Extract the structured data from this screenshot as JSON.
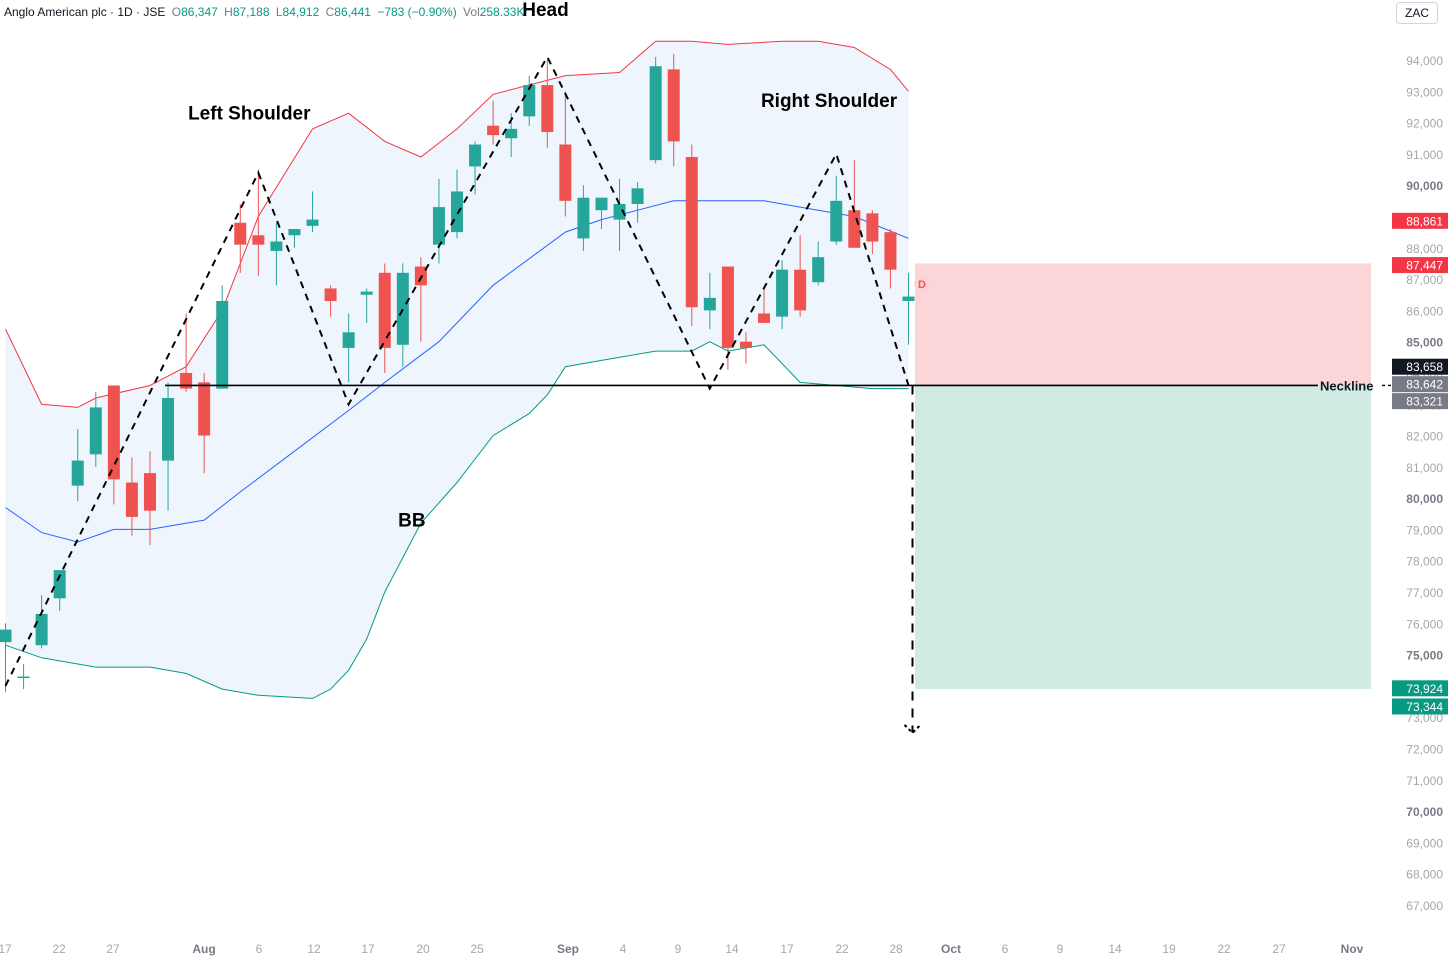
{
  "legend": {
    "symbol": "Anglo American plc · 1D · JSE",
    "open_label": "O",
    "open": "86,347",
    "high_label": "H",
    "high": "87,188",
    "low_label": "L",
    "low": "84,912",
    "close_label": "C",
    "close": "86,441",
    "change": "−783 (−0.90%)",
    "vol_label": "Vol",
    "vol": "258.33K"
  },
  "currency_button": "ZAC",
  "colors": {
    "up": "#26a69a",
    "down": "#ef5350",
    "bb_upper": "#f23645",
    "bb_lower": "#089981",
    "bb_basis": "#2962ff",
    "bb_fill": "#eef5fc",
    "stop_zone": "#fbd5d8",
    "target_zone": "#d0ebe4"
  },
  "chart_data": {
    "type": "candlestick",
    "x_tick_labels": [
      "17",
      "22",
      "27",
      "Aug",
      "6",
      "12",
      "17",
      "20",
      "25",
      "Sep",
      "4",
      "9",
      "14",
      "17",
      "22",
      "28",
      "Oct",
      "6",
      "9",
      "14",
      "19",
      "22",
      "27",
      "Nov"
    ],
    "y_ticks": [
      67000,
      68000,
      69000,
      70000,
      71000,
      72000,
      73000,
      74000,
      75000,
      76000,
      77000,
      78000,
      79000,
      80000,
      81000,
      82000,
      83000,
      84000,
      85000,
      86000,
      87000,
      88000,
      89000,
      90000,
      91000,
      92000,
      93000,
      94000
    ],
    "y_tick_labels": [
      "67,000",
      "68,000",
      "69,000",
      "70,000",
      "71,000",
      "72,000",
      "73,000",
      "74,000",
      "75,000",
      "76,000",
      "77,000",
      "78,000",
      "79,000",
      "80,000",
      "81,000",
      "82,000",
      "83,000",
      "84,000",
      "85,000",
      "86,000",
      "87,000",
      "88,000",
      "89,000",
      "90,000",
      "91,000",
      "92,000",
      "93,000",
      "94,000"
    ],
    "ylim": [
      66700,
      95400
    ],
    "candles": [
      {
        "o": 75400,
        "h": 76000,
        "l": 73800,
        "c": 75800
      },
      {
        "o": 74300,
        "h": 74700,
        "l": 73900,
        "c": 74300
      },
      {
        "o": 75300,
        "h": 76900,
        "l": 75200,
        "c": 76300
      },
      {
        "o": 76800,
        "h": 77700,
        "l": 76400,
        "c": 77700
      },
      {
        "o": 80400,
        "h": 82200,
        "l": 79900,
        "c": 81200
      },
      {
        "o": 81400,
        "h": 83400,
        "l": 81000,
        "c": 82900
      },
      {
        "o": 83600,
        "h": 83600,
        "l": 79800,
        "c": 80600
      },
      {
        "o": 80500,
        "h": 81300,
        "l": 78800,
        "c": 79400
      },
      {
        "o": 80800,
        "h": 81500,
        "l": 78500,
        "c": 79600
      },
      {
        "o": 81200,
        "h": 83700,
        "l": 79600,
        "c": 83200
      },
      {
        "o": 84000,
        "h": 85900,
        "l": 83400,
        "c": 83500
      },
      {
        "o": 83700,
        "h": 84000,
        "l": 80800,
        "c": 82000
      },
      {
        "o": 83500,
        "h": 86800,
        "l": 83500,
        "c": 86300
      },
      {
        "o": 88800,
        "h": 89400,
        "l": 87200,
        "c": 88100
      },
      {
        "o": 88400,
        "h": 90500,
        "l": 87100,
        "c": 88100
      },
      {
        "o": 87900,
        "h": 88800,
        "l": 86800,
        "c": 88200
      },
      {
        "o": 88400,
        "h": 88600,
        "l": 88000,
        "c": 88600
      },
      {
        "o": 88700,
        "h": 89800,
        "l": 88500,
        "c": 88900
      },
      {
        "o": 86700,
        "h": 86800,
        "l": 85800,
        "c": 86300
      },
      {
        "o": 84800,
        "h": 85900,
        "l": 83700,
        "c": 85300
      },
      {
        "o": 86500,
        "h": 86700,
        "l": 85600,
        "c": 86600
      },
      {
        "o": 87200,
        "h": 87500,
        "l": 84000,
        "c": 84800
      },
      {
        "o": 84900,
        "h": 87500,
        "l": 84200,
        "c": 87200
      },
      {
        "o": 87400,
        "h": 87700,
        "l": 85000,
        "c": 86800
      },
      {
        "o": 88100,
        "h": 90200,
        "l": 87500,
        "c": 89300
      },
      {
        "o": 88500,
        "h": 90500,
        "l": 88300,
        "c": 89800
      },
      {
        "o": 90600,
        "h": 91400,
        "l": 89700,
        "c": 91300
      },
      {
        "o": 91900,
        "h": 92700,
        "l": 91300,
        "c": 91600
      },
      {
        "o": 91500,
        "h": 92300,
        "l": 90900,
        "c": 91800
      },
      {
        "o": 92200,
        "h": 93500,
        "l": 91900,
        "c": 93200
      },
      {
        "o": 93200,
        "h": 94000,
        "l": 91200,
        "c": 91700
      },
      {
        "o": 91300,
        "h": 93000,
        "l": 89000,
        "c": 89500
      },
      {
        "o": 88300,
        "h": 90000,
        "l": 87900,
        "c": 89600
      },
      {
        "o": 89200,
        "h": 89600,
        "l": 88600,
        "c": 89600
      },
      {
        "o": 88900,
        "h": 90200,
        "l": 87900,
        "c": 89400
      },
      {
        "o": 89400,
        "h": 90100,
        "l": 88800,
        "c": 89900
      },
      {
        "o": 90800,
        "h": 94100,
        "l": 90700,
        "c": 93800
      },
      {
        "o": 93700,
        "h": 94200,
        "l": 90600,
        "c": 91400
      },
      {
        "o": 90900,
        "h": 91300,
        "l": 85500,
        "c": 86100
      },
      {
        "o": 86000,
        "h": 87200,
        "l": 85400,
        "c": 86400
      },
      {
        "o": 87400,
        "h": 87400,
        "l": 84100,
        "c": 84800
      },
      {
        "o": 85000,
        "h": 85300,
        "l": 84300,
        "c": 84800
      },
      {
        "o": 85900,
        "h": 86700,
        "l": 85600,
        "c": 85600
      },
      {
        "o": 85800,
        "h": 87600,
        "l": 85400,
        "c": 87300
      },
      {
        "o": 87300,
        "h": 88400,
        "l": 85800,
        "c": 86000
      },
      {
        "o": 86900,
        "h": 88200,
        "l": 86800,
        "c": 87700
      },
      {
        "o": 88200,
        "h": 90300,
        "l": 88100,
        "c": 89500
      },
      {
        "o": 89200,
        "h": 90800,
        "l": 88200,
        "c": 88000
      },
      {
        "o": 89100,
        "h": 89200,
        "l": 87800,
        "c": 88200
      },
      {
        "o": 88500,
        "h": 88600,
        "l": 86700,
        "c": 87300
      },
      {
        "o": 86300,
        "h": 87200,
        "l": 84900,
        "c": 86441
      }
    ],
    "bollinger": {
      "upper": [
        {
          "i": 0,
          "v": 85400
        },
        {
          "i": 2,
          "v": 83000
        },
        {
          "i": 4,
          "v": 82900
        },
        {
          "i": 5,
          "v": 83200
        },
        {
          "i": 8,
          "v": 83600
        },
        {
          "i": 10,
          "v": 84200
        },
        {
          "i": 12,
          "v": 86000
        },
        {
          "i": 14,
          "v": 89000
        },
        {
          "i": 17,
          "v": 91800
        },
        {
          "i": 19,
          "v": 92300
        },
        {
          "i": 21,
          "v": 91400
        },
        {
          "i": 23,
          "v": 90900
        },
        {
          "i": 25,
          "v": 91800
        },
        {
          "i": 27,
          "v": 92900
        },
        {
          "i": 29,
          "v": 93200
        },
        {
          "i": 31,
          "v": 93500
        },
        {
          "i": 34,
          "v": 93600
        },
        {
          "i": 36,
          "v": 94600
        },
        {
          "i": 38,
          "v": 94600
        },
        {
          "i": 40,
          "v": 94500
        },
        {
          "i": 43,
          "v": 94600
        },
        {
          "i": 45,
          "v": 94600
        },
        {
          "i": 47,
          "v": 94400
        },
        {
          "i": 49,
          "v": 93700
        },
        {
          "i": 50,
          "v": 93000
        }
      ],
      "basis": [
        {
          "i": 0,
          "v": 79700
        },
        {
          "i": 2,
          "v": 78900
        },
        {
          "i": 4,
          "v": 78600
        },
        {
          "i": 6,
          "v": 79000
        },
        {
          "i": 8,
          "v": 79000
        },
        {
          "i": 11,
          "v": 79300
        },
        {
          "i": 13,
          "v": 80200
        },
        {
          "i": 16,
          "v": 81500
        },
        {
          "i": 19,
          "v": 82800
        },
        {
          "i": 21,
          "v": 83700
        },
        {
          "i": 24,
          "v": 85000
        },
        {
          "i": 27,
          "v": 86800
        },
        {
          "i": 31,
          "v": 88500
        },
        {
          "i": 33,
          "v": 88900
        },
        {
          "i": 35,
          "v": 89200
        },
        {
          "i": 37,
          "v": 89500
        },
        {
          "i": 39,
          "v": 89500
        },
        {
          "i": 42,
          "v": 89500
        },
        {
          "i": 44,
          "v": 89300
        },
        {
          "i": 47,
          "v": 89000
        },
        {
          "i": 50,
          "v": 88300
        }
      ],
      "lower": [
        {
          "i": 0,
          "v": 75300
        },
        {
          "i": 2,
          "v": 74900
        },
        {
          "i": 5,
          "v": 74600
        },
        {
          "i": 8,
          "v": 74600
        },
        {
          "i": 10,
          "v": 74400
        },
        {
          "i": 12,
          "v": 73900
        },
        {
          "i": 14,
          "v": 73700
        },
        {
          "i": 17,
          "v": 73600
        },
        {
          "i": 18,
          "v": 73900
        },
        {
          "i": 19,
          "v": 74500
        },
        {
          "i": 20,
          "v": 75500
        },
        {
          "i": 21,
          "v": 77000
        },
        {
          "i": 23,
          "v": 79200
        },
        {
          "i": 25,
          "v": 80500
        },
        {
          "i": 27,
          "v": 82000
        },
        {
          "i": 29,
          "v": 82700
        },
        {
          "i": 30,
          "v": 83300
        },
        {
          "i": 31,
          "v": 84200
        },
        {
          "i": 33,
          "v": 84400
        },
        {
          "i": 36,
          "v": 84700
        },
        {
          "i": 38,
          "v": 84700
        },
        {
          "i": 39,
          "v": 85000
        },
        {
          "i": 40,
          "v": 84700
        },
        {
          "i": 42,
          "v": 84900
        },
        {
          "i": 44,
          "v": 83700
        },
        {
          "i": 46,
          "v": 83600
        },
        {
          "i": 48,
          "v": 83500
        },
        {
          "i": 50,
          "v": 83500
        }
      ]
    },
    "pattern_path": [
      {
        "i": 0,
        "v": 74000
      },
      {
        "i": 14,
        "v": 90400
      },
      {
        "i": 19,
        "v": 83000
      },
      {
        "i": 30,
        "v": 94100
      },
      {
        "i": 39,
        "v": 83500
      },
      {
        "i": 46,
        "v": 91000
      },
      {
        "i": 50,
        "v": 83600
      }
    ],
    "projection": {
      "from": 83600,
      "to": 72500
    },
    "neckline": {
      "value": 83600,
      "label": "Neckline"
    },
    "stop_zone": [
      83600,
      87500
    ],
    "target_zone": [
      73900,
      83600
    ],
    "annotations": [
      {
        "text": "Left Shoulder",
        "i": 13.5,
        "v": 92100
      },
      {
        "text": "Head",
        "i": 29.9,
        "v": 95400
      },
      {
        "text": "Right Shoulder",
        "i": 45.6,
        "v": 92500
      },
      {
        "text": "BB",
        "i": 22.5,
        "v": 79100
      }
    ],
    "event_marker": "D",
    "price_tags": [
      {
        "value": 88861,
        "label": "88,861",
        "bg": "#f23645"
      },
      {
        "value": 87447,
        "label": "87,447",
        "bg": "#f23645"
      },
      {
        "value": 84200,
        "label": "83,658",
        "bg": "#131722"
      },
      {
        "value": 83642,
        "label": "83,642",
        "bg": "#787b86"
      },
      {
        "value": 83100,
        "label": "83,321",
        "bg": "#787b86"
      },
      {
        "value": 73924,
        "label": "73,924",
        "bg": "#089981"
      },
      {
        "value": 73344,
        "label": "73,344",
        "bg": "#089981"
      }
    ]
  }
}
